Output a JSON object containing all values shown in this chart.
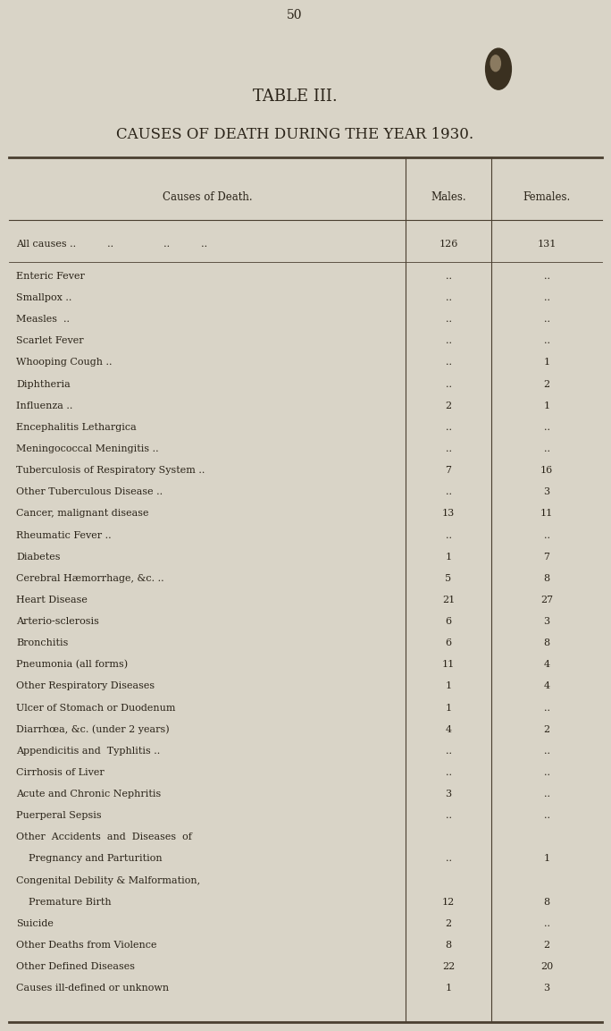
{
  "page_number": "50",
  "title_line1": "TABLE III.",
  "title_line2": "CAUSES OF DEATH DURING THE YEAR 1930.",
  "col_header_cause": "Causes of Death.",
  "col_header_males": "Males.",
  "col_header_females": "Females.",
  "all_causes_males": "126",
  "all_causes_females": "131",
  "rows": [
    {
      "cause": "Enteric Fever",
      "suffix": "..          ..          ..",
      "males": "..",
      "females": ".."
    },
    {
      "cause": "Smallpox ..",
      "suffix": "..          ..          ..",
      "males": "..",
      "females": ".."
    },
    {
      "cause": "Measles  ..",
      "suffix": "..          ..          ..",
      "males": "..",
      "females": ".."
    },
    {
      "cause": "Scarlet Fever",
      "suffix": "..          ..          ..",
      "males": "..",
      "females": ".."
    },
    {
      "cause": "Whooping Cough ..",
      "suffix": "..          ..          ..",
      "males": "..",
      "females": "1"
    },
    {
      "cause": "Diphtheria",
      "suffix": "..          ..          ..",
      "males": "..",
      "females": "2"
    },
    {
      "cause": "Influenza ..",
      "suffix": "..          ..          ..",
      "males": "2",
      "females": "1"
    },
    {
      "cause": "Encephalitis Lethargica",
      "suffix": "..          ..",
      "males": "..",
      "females": ".."
    },
    {
      "cause": "Meningococcal Meningitis ..",
      "suffix": "",
      "males": "..",
      "females": ".."
    },
    {
      "cause": "Tuberculosis of Respiratory System ..",
      "suffix": "",
      "males": "7",
      "females": "16"
    },
    {
      "cause": "Other Tuberculous Disease ..",
      "suffix": "..          ..",
      "males": "..",
      "females": "3"
    },
    {
      "cause": "Cancer, malignant disease",
      "suffix": "..          ..",
      "males": "13",
      "females": "11"
    },
    {
      "cause": "Rheumatic Fever ..",
      "suffix": "..          ..          ..",
      "males": "..",
      "females": ".."
    },
    {
      "cause": "Diabetes",
      "suffix": "..          ..          ..",
      "males": "1",
      "females": "7"
    },
    {
      "cause": "Cerebral Hæmorrhage, &c. ..",
      "suffix": "..          ..",
      "males": "5",
      "females": "8"
    },
    {
      "cause": "Heart Disease",
      "suffix": "..          ..          ..",
      "males": "21",
      "females": "27"
    },
    {
      "cause": "Arterio-sclerosis",
      "suffix": "..          ..          ..",
      "males": "6",
      "females": "3"
    },
    {
      "cause": "Bronchitis",
      "suffix": "..          ..          ..",
      "males": "6",
      "females": "8"
    },
    {
      "cause": "Pneumonia (all forms)",
      "suffix": "..          ..",
      "males": "11",
      "females": "4"
    },
    {
      "cause": "Other Respiratory Diseases",
      "suffix": "..          ..",
      "males": "1",
      "females": "4"
    },
    {
      "cause": "Ulcer of Stomach or Duodenum",
      "suffix": "..          ",
      "males": "1",
      "females": ".."
    },
    {
      "cause": "Diarrhœa, &c. (under 2 years)",
      "suffix": "..          ",
      "males": "4",
      "females": "2"
    },
    {
      "cause": "Appendicitis and  Typhlitis ..",
      "suffix": "..          ..",
      "males": "..",
      "females": ".."
    },
    {
      "cause": "Cirrhosis of Liver",
      "suffix": "  .          ..          ..",
      "males": "..",
      "females": ".."
    },
    {
      "cause": "Acute and Chronic Nephritis",
      "suffix": "  ..          ",
      "males": "3",
      "females": ".."
    },
    {
      "cause": "Puerperal Sepsis",
      "suffix": "..          ..          ..",
      "males": "..",
      "females": ".."
    },
    {
      "cause": "Other  Accidents  and  Diseases  of",
      "suffix": "",
      "males": "",
      "females": ""
    },
    {
      "cause": "    Pregnancy and Parturition",
      "suffix": "..          ",
      "males": "..",
      "females": "1"
    },
    {
      "cause": "Congenital Debility & Malformation,",
      "suffix": "",
      "males": "",
      "females": ""
    },
    {
      "cause": "    Premature Birth",
      "suffix": "..          ..",
      "males": "12",
      "females": "8"
    },
    {
      "cause": "Suicide",
      "suffix": "..          ..          ..",
      "males": "2",
      "females": ".."
    },
    {
      "cause": "Other Deaths from Violence",
      "suffix": "..          ",
      "males": "8",
      "females": "2"
    },
    {
      "cause": "Other Defined Diseases",
      "suffix": "..          ..",
      "males": "22",
      "females": "20"
    },
    {
      "cause": "Causes ill-defined or unknown",
      "suffix": "",
      "males": "1",
      "females": "3"
    }
  ],
  "bg_color": "#d9d4c7",
  "text_color": "#2a2318",
  "line_color": "#4a3f30",
  "font_size_title1": 13,
  "font_size_title2": 12,
  "font_size_header": 8.5,
  "font_size_body": 8.0,
  "font_size_page": 10
}
